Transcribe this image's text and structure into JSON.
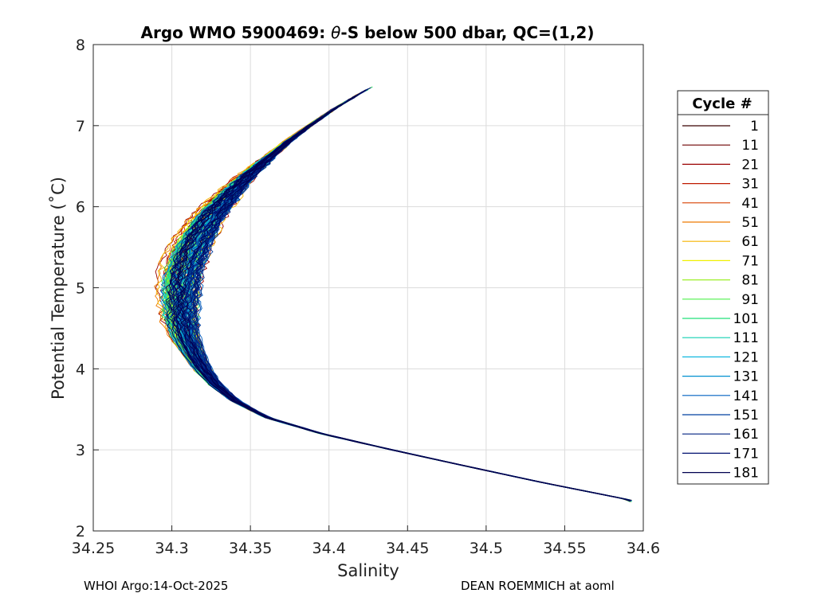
{
  "chart_data": {
    "type": "line",
    "title_prefix": "Argo WMO 5900469: ",
    "title_theta": "θ",
    "title_suffix": "-S below 500 dbar,  QC=(1,2)",
    "xlabel": "Salinity",
    "ylabel": "Potential Temperature (˚C)",
    "xlim": [
      34.25,
      34.6
    ],
    "ylim": [
      2,
      8
    ],
    "grid": true,
    "xticks": [
      "34.25",
      "34.3",
      "34.35",
      "34.4",
      "34.45",
      "34.5",
      "34.55",
      "34.6"
    ],
    "yticks": [
      "2",
      "3",
      "4",
      "5",
      "6",
      "7",
      "8"
    ],
    "legend": {
      "title": "Cycle #",
      "placement": "outside-right",
      "entries": [
        {
          "label": "1",
          "color": "#3a0000"
        },
        {
          "label": "11",
          "color": "#6e0000"
        },
        {
          "label": "21",
          "color": "#9a0000"
        },
        {
          "label": "31",
          "color": "#bf1a00"
        },
        {
          "label": "41",
          "color": "#d84000"
        },
        {
          "label": "51",
          "color": "#ee7a00"
        },
        {
          "label": "61",
          "color": "#f5b400"
        },
        {
          "label": "71",
          "color": "#f0f000"
        },
        {
          "label": "81",
          "color": "#9ef02a"
        },
        {
          "label": "91",
          "color": "#4ef04a"
        },
        {
          "label": "101",
          "color": "#20e07a"
        },
        {
          "label": "111",
          "color": "#10d0b0"
        },
        {
          "label": "121",
          "color": "#10b8e0"
        },
        {
          "label": "131",
          "color": "#0090d0"
        },
        {
          "label": "141",
          "color": "#0060c0"
        },
        {
          "label": "151",
          "color": "#0040a0"
        },
        {
          "label": "161",
          "color": "#002080"
        },
        {
          "label": "171",
          "color": "#001070"
        },
        {
          "label": "181",
          "color": "#000050"
        }
      ]
    },
    "profile_shape": {
      "temperature": [
        2.38,
        2.6,
        2.8,
        3.0,
        3.2,
        3.4,
        3.6,
        3.8,
        4.0,
        4.2,
        4.4,
        4.6,
        4.8,
        5.0,
        5.2,
        5.4,
        5.6,
        5.8,
        6.0,
        6.2,
        6.4,
        6.6,
        6.8,
        7.0,
        7.2,
        7.4,
        7.5
      ],
      "salinity": [
        34.592,
        34.535,
        34.487,
        34.44,
        34.395,
        34.36,
        34.34,
        34.327,
        34.318,
        34.312,
        34.307,
        34.305,
        34.305,
        34.306,
        34.308,
        34.312,
        34.317,
        34.323,
        34.331,
        34.34,
        34.35,
        34.362,
        34.374,
        34.388,
        34.403,
        34.42,
        34.43
      ]
    }
  },
  "footer": {
    "left": "WHOI Argo:14-Oct-2025",
    "right": "DEAN ROEMMICH at aoml"
  }
}
